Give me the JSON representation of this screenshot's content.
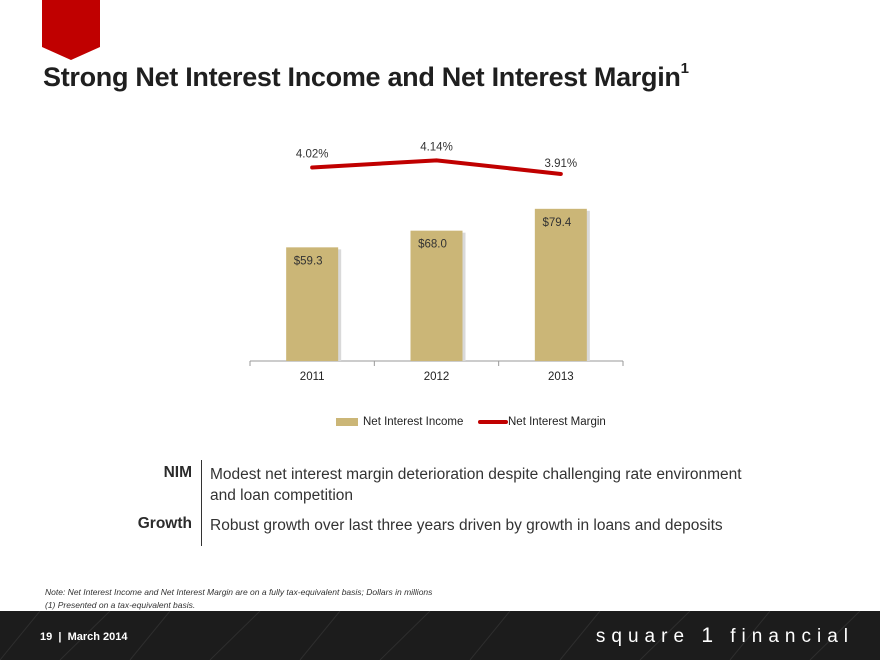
{
  "header": {
    "title": "Strong Net Interest Income and Net Interest Margin",
    "title_footnote": "1"
  },
  "chart_data": {
    "type": "bar",
    "categories": [
      "2011",
      "2012",
      "2013"
    ],
    "series": [
      {
        "name": "Net Interest Income",
        "type": "bar",
        "values": [
          59.3,
          68.0,
          79.4
        ],
        "labels": [
          "$59.3",
          "$68.0",
          "$79.4"
        ],
        "color": "#CBB677"
      },
      {
        "name": "Net Interest Margin",
        "type": "line",
        "values": [
          4.02,
          4.14,
          3.91
        ],
        "labels": [
          "4.02%",
          "4.14%",
          "3.91%"
        ],
        "color": "#C00000"
      }
    ],
    "ylim": [
      0,
      120
    ],
    "legend": "bottom"
  },
  "commentary": [
    {
      "label": "NIM",
      "text": "Modest net interest margin deterioration despite challenging rate environment and loan competition"
    },
    {
      "label": "Growth",
      "text": "Robust growth over last three years driven by growth in loans and deposits"
    }
  ],
  "footnotes": {
    "note": "Note: Net Interest Income and Net Interest Margin are on a fully tax-equivalent basis; Dollars in millions",
    "ref": "(1) Presented on a tax-equivalent basis."
  },
  "footer": {
    "page_number": "19",
    "separator": "|",
    "date": "March 2014",
    "brand_word1": "square",
    "brand_number": "1",
    "brand_word2": "financial"
  },
  "colors": {
    "accent": "#C00000",
    "bar": "#CBB677",
    "footer_bg": "#1c1c1c"
  }
}
